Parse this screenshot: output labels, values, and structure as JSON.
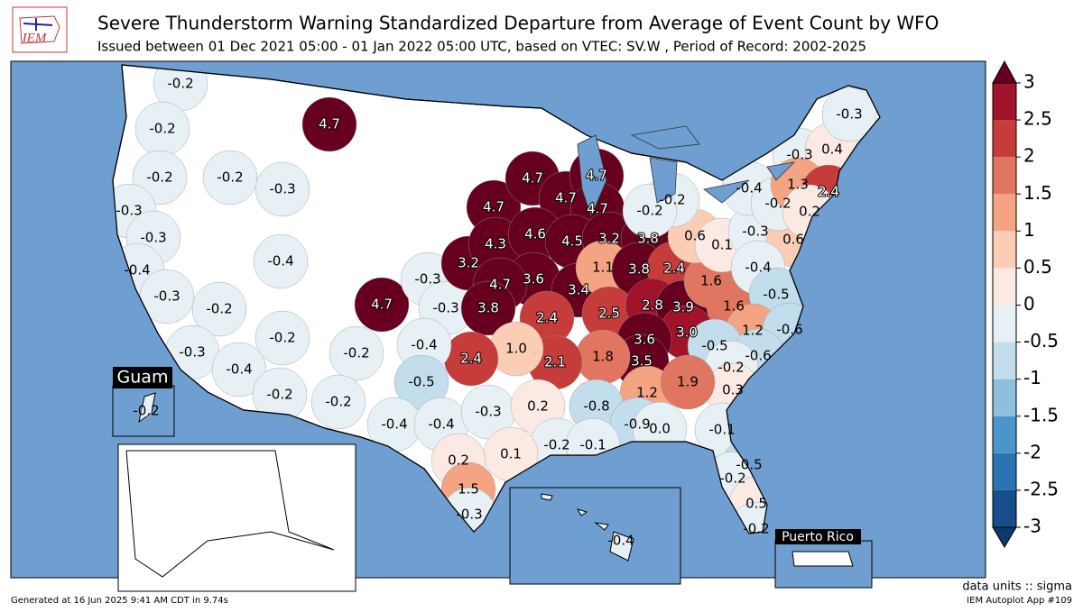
{
  "chart_data": {
    "type": "choropleth",
    "title": "Severe Thunderstorm Warning Standardized Departure from Average of Event Count by WFO",
    "subtitle": "Issued between 01 Dec 2021 05:00 - 01 Jan 2022 05:00 UTC, based on VTEC: SV.W  , Period of Record: 2002-2025",
    "logo": "IEM",
    "inset_labels": [
      "Guam",
      "Puerto Rico"
    ],
    "units_label": "data units :: sigma",
    "footer_left": "Generated at 16 Jun 2025 9:41 AM CDT in 9.74s",
    "footer_right": "IEM Autoplot App #109",
    "ylim": [
      -3,
      3
    ],
    "yticks": [
      -3,
      -2.5,
      -2,
      -1.5,
      -1,
      -0.5,
      0,
      0.5,
      1,
      1.5,
      2,
      2.5,
      3
    ],
    "colors": [
      "#174d8a",
      "#2c73b3",
      "#4b96c8",
      "#8ec0dd",
      "#c2ddec",
      "#e7f0f4",
      "#fbeae3",
      "#fccdb5",
      "#f4a482",
      "#e07560",
      "#c53c3a",
      "#a0132b"
    ],
    "over_color": "#67001f",
    "under_color": "#0b3a6e",
    "values": [
      -0.2,
      -0.2,
      4.7,
      -0.2,
      -0.2,
      -0.3,
      -0.3,
      -0.3,
      -0.4,
      -0.3,
      -0.2,
      -0.3,
      -0.4,
      -0.4,
      -0.2,
      -0.2,
      -0.2,
      -0.2,
      4.7,
      -0.3,
      -0.3,
      3.2,
      4.7,
      4.3,
      4.7,
      4.7,
      4.7,
      4.7,
      4.6,
      4.5,
      3.2,
      3.8,
      3.6,
      4.7,
      3.8,
      3.4,
      1.1,
      3.8,
      2.4,
      2.4,
      2.5,
      2.8,
      3.9,
      1.6,
      1.6,
      0.6,
      0.1,
      -0.3,
      0.6,
      -0.4,
      -0.5,
      1.2,
      -0.6,
      3.0,
      -0.5,
      -0.6,
      -0.2,
      0.3,
      3.6,
      3.5,
      1.2,
      1.9,
      1.8,
      2.1,
      1.0,
      2.4,
      -0.4,
      -0.5,
      -0.4,
      -0.4,
      -0.3,
      0.2,
      -0.8,
      -0.9,
      0.0,
      -0.1,
      -0.5,
      -0.2,
      0.5,
      -0.2,
      -0.2,
      -0.1,
      0.1,
      0.2,
      1.5,
      -0.3,
      -0.2,
      -0.2,
      -0.4,
      -0.2,
      -0.3,
      0.4,
      -0.3,
      1.3,
      2.4,
      0.2,
      -0.2,
      -0.4
    ],
    "value_labels": [
      "-0.2",
      "-0.2",
      "4.7",
      "-0.2",
      "-0.2",
      "-0.3",
      "-0.3",
      "-0.3",
      "-0.4",
      "-0.3",
      "-0.2",
      "-0.3",
      "-0.4",
      "-0.4",
      "-0.2",
      "-0.2",
      "-0.2",
      "-0.2",
      "4.7",
      "-0.3",
      "-0.3",
      "3.2",
      "4.7",
      "4.3",
      "4.7",
      "4.7",
      "4.7",
      "4.7",
      "4.6",
      "4.5",
      "3.2",
      "3.8",
      "3.6",
      "4.7",
      "3.8",
      "3.4",
      "1.1",
      "3.8",
      "2.4",
      "2.4",
      "2.5",
      "2.8",
      "3.9",
      "1.6",
      "1.6",
      "0.6",
      "0.1",
      "-0.3",
      "0.6",
      "-0.4",
      "-0.5",
      "1.2",
      "-0.6",
      "3.0",
      "-0.5",
      "-0.6",
      "-0.2",
      "0.3",
      "3.6",
      "3.5",
      "1.2",
      "1.9",
      "1.8",
      "2.1",
      "1.0",
      "2.4",
      "-0.4",
      "-0.5",
      "-0.4",
      "-0.4",
      "-0.3",
      "0.2",
      "-0.8",
      "-0.9",
      "0.0",
      "-0.1",
      "-0.5",
      "-0.2",
      "0.5",
      "-0.2",
      "-0.2",
      "-0.1",
      "0.1",
      "0.2",
      "1.5",
      "-0.3",
      "-0.2",
      "-0.2",
      "-0.4",
      "-0.2",
      "-0.3",
      "0.4",
      "-0.3",
      "1.3",
      "2.4",
      "0.2",
      "-0.2",
      "-0.4"
    ]
  }
}
